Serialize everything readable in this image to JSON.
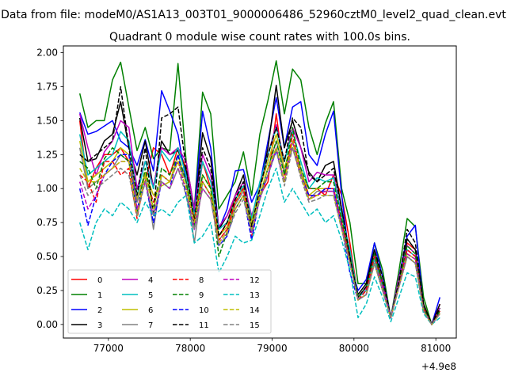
{
  "chart_data": {
    "type": "line",
    "suptitle": "Data from file: modeM0/AS1A13_003T01_9000006486_52960cztM0_level2_quad_clean.evt",
    "title": "Quadrant 0 module wise count rates with 100.0s bins.",
    "xlabel": "",
    "ylabel": "",
    "x_offset_label": "+4.9e8",
    "xlim": [
      76450,
      81250
    ],
    "ylim": [
      -0.1,
      2.05
    ],
    "x_ticks": [
      77000,
      78000,
      79000,
      80000,
      81000
    ],
    "x_tick_labels": [
      "77000",
      "78000",
      "79000",
      "80000",
      "81000"
    ],
    "y_ticks": [
      0,
      0.25,
      0.5,
      0.75,
      1.0,
      1.25,
      1.5,
      1.75,
      2.0
    ],
    "y_tick_labels": [
      "0.00",
      "0.25",
      "0.50",
      "0.75",
      "1.00",
      "1.25",
      "1.50",
      "1.75",
      "2.00"
    ],
    "legend_position": "lower-left",
    "legend_ncol": 4,
    "x": [
      76650,
      76750,
      76850,
      76950,
      77050,
      77150,
      77250,
      77350,
      77450,
      77550,
      77650,
      77750,
      77850,
      77950,
      78050,
      78150,
      78250,
      78350,
      78450,
      78550,
      78650,
      78750,
      78850,
      78950,
      79050,
      79150,
      79250,
      79350,
      79450,
      79550,
      79650,
      79750,
      79850,
      79950,
      80050,
      80150,
      80250,
      80350,
      80450,
      80550,
      80650,
      80750,
      80850,
      80950,
      81050
    ],
    "series": [
      {
        "name": "0",
        "color": "#ff0000",
        "dash": "solid",
        "values": [
          1.5,
          1.0,
          1.15,
          1.25,
          1.25,
          1.3,
          1.2,
          1.0,
          1.05,
          1.3,
          1.25,
          1.1,
          1.3,
          1.15,
          0.75,
          1.2,
          1.0,
          0.65,
          0.75,
          0.95,
          1.0,
          0.7,
          0.95,
          1.05,
          1.55,
          1.1,
          1.3,
          1.1,
          1.0,
          1.0,
          0.95,
          1.1,
          0.95,
          0.6,
          0.2,
          0.25,
          0.5,
          0.3,
          0.05,
          0.35,
          0.6,
          0.55,
          0.15,
          0.0,
          0.15
        ]
      },
      {
        "name": "1",
        "color": "#008000",
        "dash": "solid",
        "values": [
          1.7,
          1.45,
          1.5,
          1.5,
          1.8,
          1.93,
          1.6,
          1.28,
          1.45,
          1.22,
          1.3,
          1.28,
          1.92,
          1.2,
          0.85,
          1.71,
          1.55,
          0.85,
          0.95,
          1.05,
          1.27,
          0.95,
          1.4,
          1.65,
          1.94,
          1.55,
          1.88,
          1.8,
          1.45,
          1.25,
          1.48,
          1.64,
          1.0,
          0.75,
          0.3,
          0.3,
          0.6,
          0.4,
          0.05,
          0.4,
          0.78,
          0.72,
          0.2,
          0.0,
          0.1
        ]
      },
      {
        "name": "2",
        "color": "#0000ff",
        "dash": "solid",
        "values": [
          1.56,
          1.4,
          1.42,
          1.46,
          1.5,
          1.35,
          1.3,
          1.17,
          1.36,
          1.13,
          1.72,
          1.57,
          1.4,
          1.05,
          0.83,
          1.57,
          1.3,
          0.7,
          0.85,
          1.13,
          1.14,
          0.9,
          1.03,
          1.35,
          1.67,
          1.3,
          1.6,
          1.64,
          1.25,
          1.17,
          1.4,
          1.57,
          0.95,
          0.45,
          0.25,
          0.33,
          0.6,
          0.35,
          0.05,
          0.35,
          0.65,
          0.73,
          0.12,
          0.0,
          0.2
        ]
      },
      {
        "name": "3",
        "color": "#000000",
        "dash": "solid",
        "values": [
          1.52,
          1.2,
          1.22,
          1.35,
          1.4,
          1.64,
          1.3,
          1.1,
          1.35,
          1.0,
          1.35,
          1.25,
          1.28,
          1.13,
          0.8,
          1.41,
          1.22,
          0.7,
          0.8,
          0.95,
          1.1,
          0.75,
          1.0,
          1.3,
          1.76,
          1.3,
          1.5,
          1.3,
          1.12,
          1.05,
          1.17,
          1.2,
          0.85,
          0.5,
          0.22,
          0.3,
          0.55,
          0.3,
          0.05,
          0.3,
          0.63,
          0.55,
          0.15,
          0.0,
          0.15
        ]
      },
      {
        "name": "4",
        "color": "#bf00bf",
        "dash": "solid",
        "values": [
          1.55,
          1.3,
          1.1,
          1.27,
          1.35,
          1.5,
          1.45,
          1.0,
          1.2,
          1.02,
          1.3,
          1.25,
          1.3,
          1.2,
          0.85,
          1.25,
          1.1,
          0.72,
          0.8,
          0.95,
          1.05,
          0.8,
          1.0,
          1.25,
          1.47,
          1.2,
          1.45,
          1.3,
          1.05,
          1.12,
          1.1,
          1.1,
          0.8,
          0.55,
          0.2,
          0.27,
          0.5,
          0.3,
          0.05,
          0.35,
          0.58,
          0.52,
          0.12,
          0.0,
          0.12
        ]
      },
      {
        "name": "5",
        "color": "#00bfbf",
        "dash": "solid",
        "values": [
          1.4,
          1.1,
          1.15,
          1.2,
          1.25,
          1.42,
          1.35,
          0.95,
          1.2,
          1.0,
          1.28,
          1.2,
          1.3,
          1.1,
          0.8,
          1.2,
          1.05,
          0.7,
          0.75,
          0.92,
          1.02,
          0.78,
          1.05,
          1.25,
          1.45,
          1.2,
          1.42,
          1.2,
          1.0,
          1.08,
          1.05,
          1.08,
          0.8,
          0.55,
          0.2,
          0.25,
          0.48,
          0.28,
          0.05,
          0.32,
          0.55,
          0.5,
          0.12,
          0.0,
          0.1
        ]
      },
      {
        "name": "6",
        "color": "#bfbf00",
        "dash": "solid",
        "values": [
          1.35,
          1.05,
          1.1,
          1.15,
          1.2,
          1.3,
          1.25,
          0.92,
          1.12,
          0.95,
          1.02,
          1.05,
          1.25,
          1.05,
          0.78,
          1.1,
          1.0,
          0.65,
          0.72,
          0.9,
          1.0,
          0.75,
          1.0,
          1.2,
          1.4,
          1.15,
          1.35,
          1.15,
          0.95,
          1.0,
          1.0,
          1.0,
          0.75,
          0.5,
          0.18,
          0.22,
          0.45,
          0.25,
          0.05,
          0.3,
          0.52,
          0.48,
          0.1,
          0.0,
          0.08
        ]
      },
      {
        "name": "7",
        "color": "#808080",
        "dash": "solid",
        "values": [
          1.3,
          1.0,
          1.05,
          1.1,
          1.15,
          1.25,
          1.2,
          0.9,
          1.1,
          0.7,
          1.1,
          1.05,
          1.2,
          1.05,
          0.6,
          1.05,
          0.95,
          0.62,
          0.7,
          0.88,
          0.98,
          0.72,
          0.95,
          1.15,
          1.35,
          1.12,
          1.3,
          1.12,
          0.92,
          0.98,
          0.98,
          0.98,
          0.72,
          0.48,
          0.18,
          0.22,
          0.45,
          0.25,
          0.05,
          0.28,
          0.5,
          0.45,
          0.1,
          0.0,
          0.08
        ]
      },
      {
        "name": "8",
        "color": "#ff0000",
        "dash": "dashed",
        "values": [
          1.1,
          1.05,
          0.9,
          1.2,
          1.2,
          1.1,
          1.15,
          0.78,
          1.1,
          0.9,
          1.1,
          1.05,
          1.2,
          1.0,
          0.78,
          1.05,
          0.95,
          0.62,
          0.7,
          0.9,
          1.0,
          0.65,
          0.95,
          1.1,
          1.3,
          1.05,
          1.4,
          1.1,
          0.95,
          0.95,
          1.0,
          1.0,
          0.75,
          0.48,
          0.18,
          0.25,
          0.5,
          0.3,
          0.05,
          0.3,
          0.55,
          0.5,
          0.12,
          0.0,
          0.1
        ]
      },
      {
        "name": "9",
        "color": "#008000",
        "dash": "dashed",
        "values": [
          1.2,
          1.15,
          1.0,
          1.22,
          1.3,
          1.25,
          1.2,
          0.82,
          1.15,
          0.85,
          1.15,
          1.1,
          1.25,
          1.05,
          0.72,
          1.1,
          1.0,
          0.5,
          0.68,
          0.85,
          0.95,
          0.68,
          0.95,
          1.15,
          1.35,
          1.1,
          1.45,
          1.15,
          1.0,
          1.0,
          1.05,
          1.05,
          0.78,
          0.5,
          0.2,
          0.28,
          0.52,
          0.3,
          0.05,
          0.32,
          0.58,
          0.52,
          0.12,
          0.0,
          0.1
        ]
      },
      {
        "name": "10",
        "color": "#0000ff",
        "dash": "dashed",
        "values": [
          1.0,
          0.73,
          0.95,
          1.1,
          1.2,
          1.25,
          1.25,
          0.85,
          1.05,
          0.75,
          1.05,
          1.0,
          1.25,
          0.95,
          0.7,
          1.05,
          0.95,
          0.58,
          0.65,
          0.85,
          0.95,
          0.62,
          0.95,
          1.1,
          1.28,
          1.05,
          1.35,
          1.1,
          0.95,
          0.95,
          1.0,
          1.0,
          0.72,
          0.38,
          0.18,
          0.22,
          0.45,
          0.25,
          0.05,
          0.28,
          0.5,
          0.45,
          0.1,
          0.0,
          0.08
        ]
      },
      {
        "name": "11",
        "color": "#000000",
        "dash": "dashed",
        "values": [
          1.25,
          1.2,
          1.25,
          1.3,
          1.35,
          1.75,
          1.3,
          0.95,
          1.3,
          0.8,
          1.52,
          1.55,
          1.6,
          1.15,
          0.75,
          1.3,
          1.15,
          0.65,
          0.75,
          0.92,
          1.05,
          0.72,
          1.0,
          1.25,
          1.45,
          1.2,
          1.52,
          1.45,
          1.1,
          1.05,
          1.1,
          1.15,
          0.85,
          0.5,
          0.2,
          0.28,
          0.55,
          0.35,
          0.05,
          0.32,
          0.7,
          0.6,
          0.15,
          0.0,
          0.12
        ]
      },
      {
        "name": "12",
        "color": "#bf00bf",
        "dash": "dashed",
        "values": [
          1.05,
          0.85,
          0.95,
          1.1,
          1.15,
          1.2,
          1.2,
          0.85,
          1.05,
          0.8,
          1.05,
          1.0,
          1.15,
          1.0,
          0.7,
          1.0,
          0.92,
          0.6,
          0.68,
          0.85,
          0.95,
          0.68,
          0.92,
          1.1,
          1.3,
          1.05,
          1.35,
          1.1,
          0.92,
          0.95,
          0.98,
          0.98,
          0.72,
          0.45,
          0.18,
          0.22,
          0.45,
          0.28,
          0.05,
          0.28,
          0.52,
          0.48,
          0.1,
          0.0,
          0.08
        ]
      },
      {
        "name": "13",
        "color": "#00bfbf",
        "dash": "dashed",
        "values": [
          0.75,
          0.55,
          0.75,
          0.85,
          0.8,
          0.9,
          0.85,
          0.75,
          0.9,
          0.8,
          0.85,
          0.8,
          0.9,
          0.95,
          0.6,
          0.65,
          0.75,
          0.38,
          0.5,
          0.65,
          0.6,
          0.62,
          0.8,
          1.0,
          1.15,
          0.9,
          1.0,
          0.9,
          0.8,
          0.85,
          0.75,
          0.8,
          0.62,
          0.4,
          0.05,
          0.15,
          0.35,
          0.2,
          0.02,
          0.2,
          0.38,
          0.35,
          0.08,
          0.0,
          0.05
        ]
      },
      {
        "name": "14",
        "color": "#bfbf00",
        "dash": "dashed",
        "values": [
          1.15,
          1.05,
          1.05,
          1.1,
          1.15,
          1.2,
          1.2,
          0.8,
          1.1,
          0.85,
          1.1,
          1.05,
          1.2,
          1.0,
          0.75,
          1.05,
          0.95,
          0.6,
          0.68,
          0.85,
          0.95,
          0.7,
          0.95,
          1.15,
          1.3,
          1.05,
          1.35,
          1.1,
          0.92,
          0.95,
          0.95,
          0.95,
          0.7,
          0.45,
          0.18,
          0.22,
          0.45,
          0.25,
          0.05,
          0.28,
          0.5,
          0.45,
          0.1,
          0.0,
          0.08
        ]
      },
      {
        "name": "15",
        "color": "#808080",
        "dash": "dashed",
        "values": [
          1.1,
          0.95,
          1.0,
          1.05,
          1.1,
          1.15,
          1.1,
          0.8,
          1.05,
          0.8,
          1.05,
          1.0,
          1.15,
          0.95,
          0.7,
          1.0,
          0.92,
          0.58,
          0.66,
          0.82,
          0.92,
          0.68,
          0.92,
          1.1,
          1.28,
          1.02,
          1.3,
          1.08,
          0.9,
          0.92,
          0.95,
          0.95,
          0.7,
          0.45,
          0.18,
          0.22,
          0.45,
          0.25,
          0.05,
          0.28,
          0.5,
          0.45,
          0.1,
          0.0,
          0.08
        ]
      }
    ]
  }
}
